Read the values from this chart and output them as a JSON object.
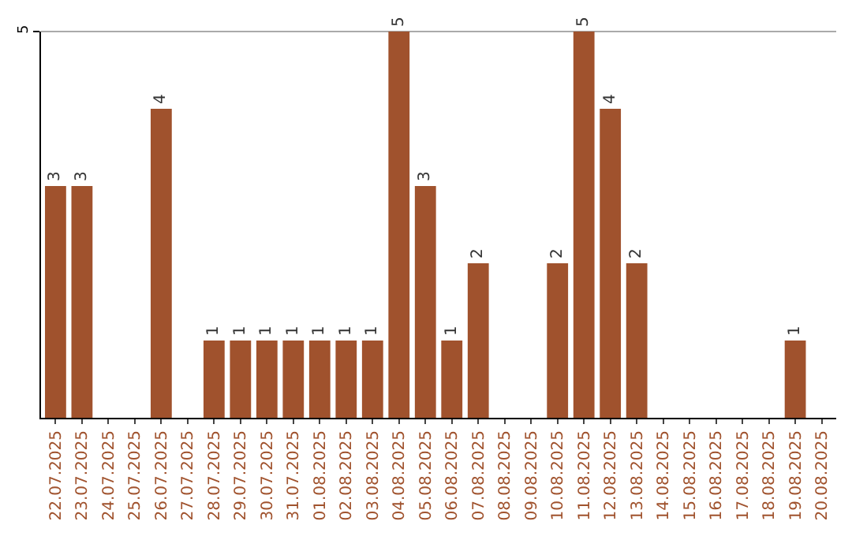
{
  "chart_data": {
    "type": "bar",
    "categories": [
      "22.07.2025",
      "23.07.2025",
      "24.07.2025",
      "25.07.2025",
      "26.07.2025",
      "27.07.2025",
      "28.07.2025",
      "29.07.2025",
      "30.07.2025",
      "31.07.2025",
      "01.08.2025",
      "02.08.2025",
      "03.08.2025",
      "04.08.2025",
      "05.08.2025",
      "06.08.2025",
      "07.08.2025",
      "08.08.2025",
      "09.08.2025",
      "10.08.2025",
      "11.08.2025",
      "12.08.2025",
      "13.08.2025",
      "14.08.2025",
      "15.08.2025",
      "16.08.2025",
      "17.08.2025",
      "18.08.2025",
      "19.08.2025",
      "20.08.2025"
    ],
    "values": [
      3,
      3,
      0,
      0,
      4,
      0,
      1,
      1,
      1,
      1,
      1,
      1,
      1,
      5,
      3,
      1,
      2,
      0,
      0,
      2,
      5,
      4,
      2,
      0,
      0,
      0,
      0,
      0,
      1,
      0
    ],
    "value_labels": [
      "3",
      "3",
      null,
      null,
      "4",
      null,
      "1",
      "1",
      "1",
      "1",
      "1",
      "1",
      "1",
      "5",
      "3",
      "1",
      "2",
      null,
      null,
      "2",
      "5",
      "4",
      "2",
      null,
      null,
      null,
      null,
      null,
      "1",
      null
    ],
    "color": "#a0522d",
    "ylim": [
      0,
      5
    ],
    "yticks": [
      5
    ],
    "legend": false
  }
}
